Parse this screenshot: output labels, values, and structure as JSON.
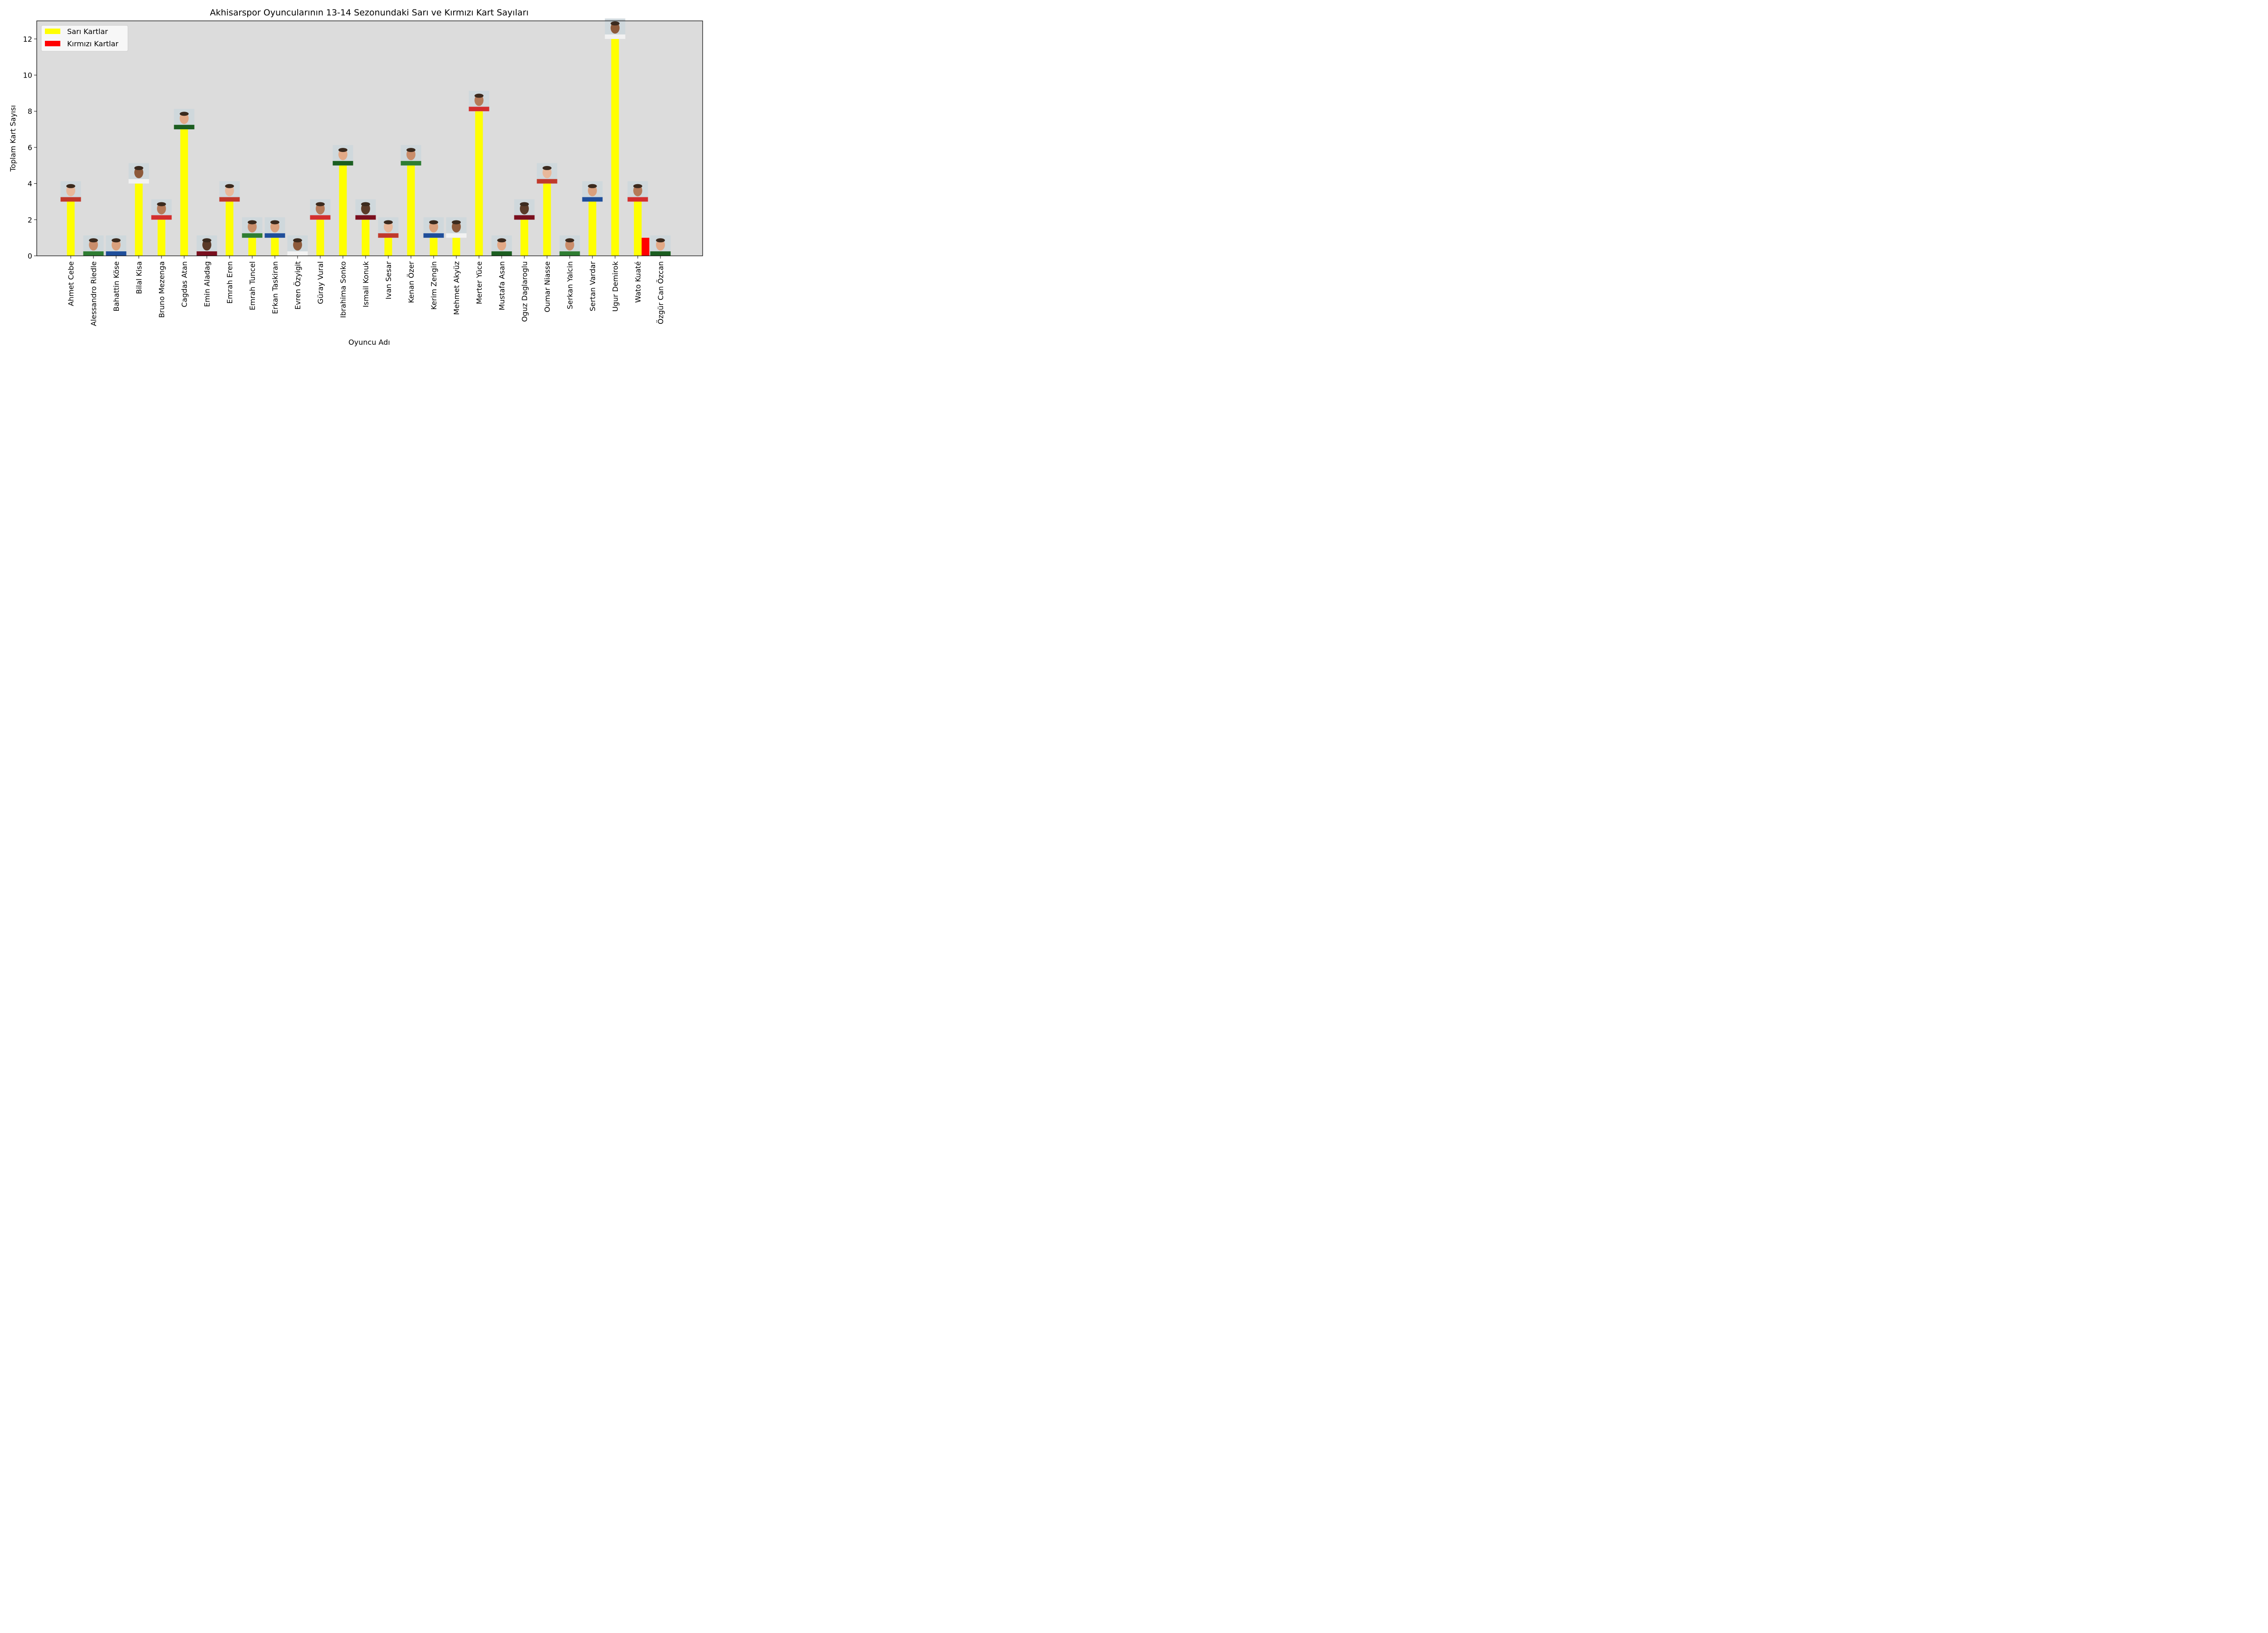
{
  "chart_data": {
    "type": "bar",
    "title": "Akhisarspor Oyuncularının 13-14 Sezonundaki Sarı ve Kırmızı Kart Sayıları",
    "xlabel": "Oyuncu Adı",
    "ylabel": "Toplam Kart Sayısı",
    "ylim": [
      0,
      13
    ],
    "yticks": [
      0,
      2,
      4,
      6,
      8,
      10,
      12
    ],
    "grid": false,
    "legend_position": "top-left",
    "background_color": "#dcdcdc",
    "categories": [
      "Ahmet Cebe",
      "Alessandro Riedle",
      "Bahattin Köse",
      "Bilal Kisa",
      "Bruno Mezenga",
      "Cagdas Atan",
      "Emin Aladag",
      "Emrah Eren",
      "Emrah Tuncel",
      "Erkan Taskiran",
      "Evren Özyigit",
      "Güray Vural",
      "Ibrahima Sonko",
      "Ismail Konuk",
      "Ivan Sesar",
      "Kenan Özer",
      "Kerim Zengin",
      "Mehmet Akyüz",
      "Merter Yüce",
      "Mustafa Asan",
      "Oguz Daglaroglu",
      "Oumar Niasse",
      "Serkan Yalcin",
      "Sertan Vardar",
      "Ugur Demirok",
      "Wato Kuaté",
      "Özgür Can Özcan"
    ],
    "series": [
      {
        "name": "Sarı Kartlar",
        "color": "#ffff00",
        "values": [
          3,
          0,
          0,
          4,
          2,
          7,
          0,
          3,
          1,
          1,
          0,
          2,
          5,
          2,
          1,
          5,
          1,
          1,
          8,
          0,
          2,
          4,
          0,
          3,
          12,
          3,
          0
        ]
      },
      {
        "name": "Kırmızı Kartlar",
        "color": "#ff0000",
        "values": [
          0,
          0,
          0,
          0,
          0,
          0,
          0,
          0,
          0,
          0,
          0,
          0,
          0,
          0,
          0,
          0,
          0,
          0,
          0,
          0,
          0,
          0,
          0,
          0,
          0,
          1,
          0
        ]
      }
    ],
    "player_photos": true
  }
}
